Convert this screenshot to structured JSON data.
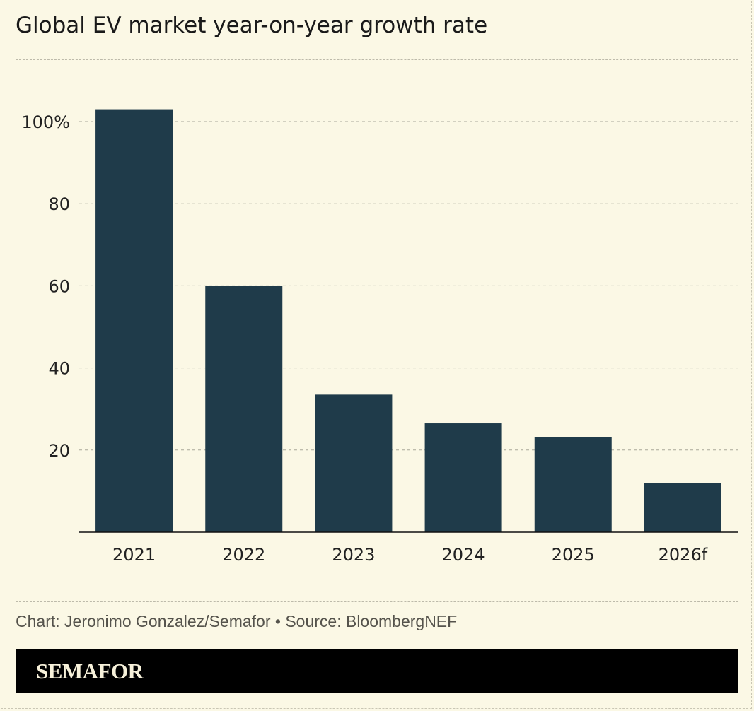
{
  "title": "Global EV market year-on-year growth rate",
  "credit": "Chart: Jeronimo Gonzalez/Semafor • Source: BloombergNEF",
  "brand": "SEMAFOR",
  "colors": {
    "bar": "#1f3b4a",
    "background": "#fbf8e5"
  },
  "chart_data": {
    "type": "bar",
    "title": "Global EV market year-on-year growth rate",
    "categories": [
      "2021",
      "2022",
      "2023",
      "2024",
      "2025",
      "2026f"
    ],
    "values": [
      103,
      60,
      33.5,
      26.5,
      23.2,
      12
    ],
    "ylim": [
      0,
      100
    ],
    "yticks": [
      20,
      40,
      60,
      80,
      100
    ],
    "ytick_labels": [
      "20",
      "40",
      "60",
      "80",
      "100%"
    ],
    "grid": true,
    "xlabel": "",
    "ylabel": ""
  }
}
